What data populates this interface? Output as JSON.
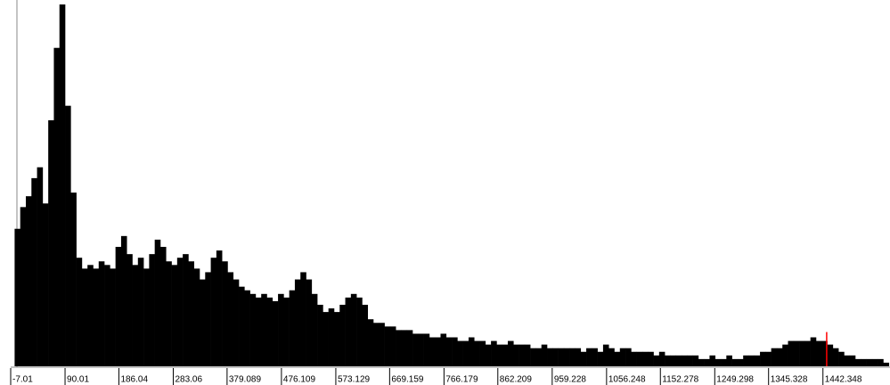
{
  "chart_data": {
    "type": "histogram",
    "bins": [
      0,
      10,
      20,
      30,
      40,
      50,
      60,
      70,
      80,
      90,
      100,
      110,
      120,
      130,
      140,
      150,
      160,
      170,
      180,
      190,
      200,
      210,
      220,
      230,
      240,
      250,
      260,
      270,
      280,
      290,
      300,
      310,
      320,
      330,
      340,
      350,
      360,
      370,
      380,
      390,
      400,
      410,
      420,
      430,
      440,
      450,
      460,
      470,
      480,
      490,
      500,
      510,
      520,
      530,
      540,
      550,
      560,
      570,
      580,
      590,
      600,
      610,
      620,
      630,
      640,
      650,
      660,
      670,
      680,
      690,
      700,
      710,
      720,
      730,
      740,
      750,
      760,
      770,
      780,
      790,
      800,
      810,
      820,
      830,
      840,
      850,
      860,
      870,
      880,
      890,
      900,
      910,
      920,
      930,
      940,
      950,
      960,
      970,
      980,
      990,
      1000,
      1010,
      1020,
      1030,
      1040,
      1050,
      1060,
      1070,
      1080,
      1090,
      1100,
      1110,
      1120,
      1130,
      1140,
      1150,
      1160,
      1170,
      1180,
      1190,
      1200,
      1210,
      1220,
      1230,
      1240,
      1250,
      1260,
      1270,
      1280,
      1290,
      1300,
      1310,
      1320,
      1330,
      1340,
      1350,
      1360,
      1370,
      1380,
      1390,
      1400,
      1410,
      1420,
      1430,
      1440,
      1450,
      1460,
      1470,
      1480,
      1490,
      1500,
      1510,
      1520,
      1530,
      1540,
      1550,
      1560
    ],
    "values": [
      38,
      44,
      47,
      52,
      55,
      45,
      68,
      88,
      100,
      72,
      48,
      30,
      27,
      28,
      27,
      29,
      28,
      27,
      33,
      36,
      31,
      28,
      30,
      27,
      31,
      35,
      33,
      29,
      28,
      30,
      31,
      29,
      27,
      24,
      26,
      30,
      32,
      29,
      26,
      24,
      22,
      21,
      20,
      19,
      20,
      19,
      18,
      20,
      19,
      21,
      24,
      26,
      24,
      20,
      17,
      15,
      16,
      15,
      17,
      19,
      20,
      19,
      17,
      13,
      12,
      12,
      11,
      11,
      10,
      10,
      10,
      9,
      9,
      9,
      8,
      8,
      9,
      8,
      8,
      7,
      7,
      8,
      7,
      7,
      6,
      7,
      6,
      6,
      7,
      6,
      6,
      6,
      5,
      5,
      6,
      5,
      5,
      5,
      5,
      5,
      5,
      4,
      5,
      5,
      4,
      6,
      5,
      4,
      5,
      5,
      4,
      4,
      4,
      4,
      3,
      4,
      3,
      3,
      3,
      3,
      3,
      3,
      2,
      2,
      3,
      2,
      2,
      3,
      2,
      2,
      3,
      3,
      3,
      4,
      4,
      5,
      5,
      6,
      7,
      7,
      7,
      7,
      8,
      7,
      7,
      6,
      5,
      4,
      3,
      3,
      2,
      2,
      2,
      2,
      2,
      1
    ],
    "color": "#000000",
    "xlim": [
      -7.01,
      1562
    ],
    "ylim": [
      0,
      100
    ],
    "xticks": [
      -7.01,
      90.01,
      186.04,
      283.06,
      379.089,
      476.109,
      573.129,
      669.159,
      766.179,
      862.209,
      959.228,
      1056.248,
      1152.278,
      1249.298,
      1345.328,
      1442.348
    ],
    "cursor": 1449,
    "cursor_color": "#ff0000"
  }
}
